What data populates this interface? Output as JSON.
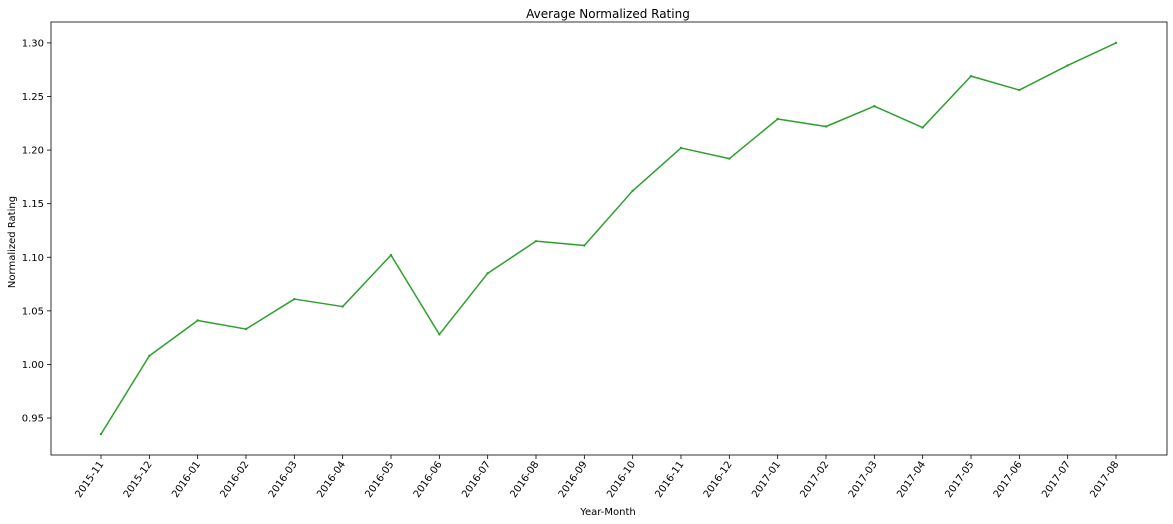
{
  "chart_data": {
    "type": "line",
    "title": "Average Normalized Rating",
    "xlabel": "Year-Month",
    "ylabel": "Normalized Rating",
    "categories": [
      "2015-11",
      "2015-12",
      "2016-01",
      "2016-02",
      "2016-03",
      "2016-04",
      "2016-05",
      "2016-06",
      "2016-07",
      "2016-08",
      "2016-09",
      "2016-10",
      "2016-11",
      "2016-12",
      "2017-01",
      "2017-02",
      "2017-03",
      "2017-04",
      "2017-05",
      "2017-06",
      "2017-07",
      "2017-08"
    ],
    "series": [
      {
        "values": [
          0.935,
          1.008,
          1.041,
          1.033,
          1.061,
          1.054,
          1.102,
          1.028,
          1.085,
          1.115,
          1.111,
          1.162,
          1.202,
          1.192,
          1.229,
          1.222,
          1.241,
          1.221,
          1.269,
          1.256,
          1.279,
          1.3
        ],
        "color": "#2ca02c"
      }
    ],
    "yticks": [
      "0.95",
      "1.00",
      "1.05",
      "1.10",
      "1.15",
      "1.20",
      "1.25",
      "1.30"
    ],
    "ylim": [
      0.9155,
      1.3195
    ],
    "grid": false,
    "legend": "none"
  }
}
